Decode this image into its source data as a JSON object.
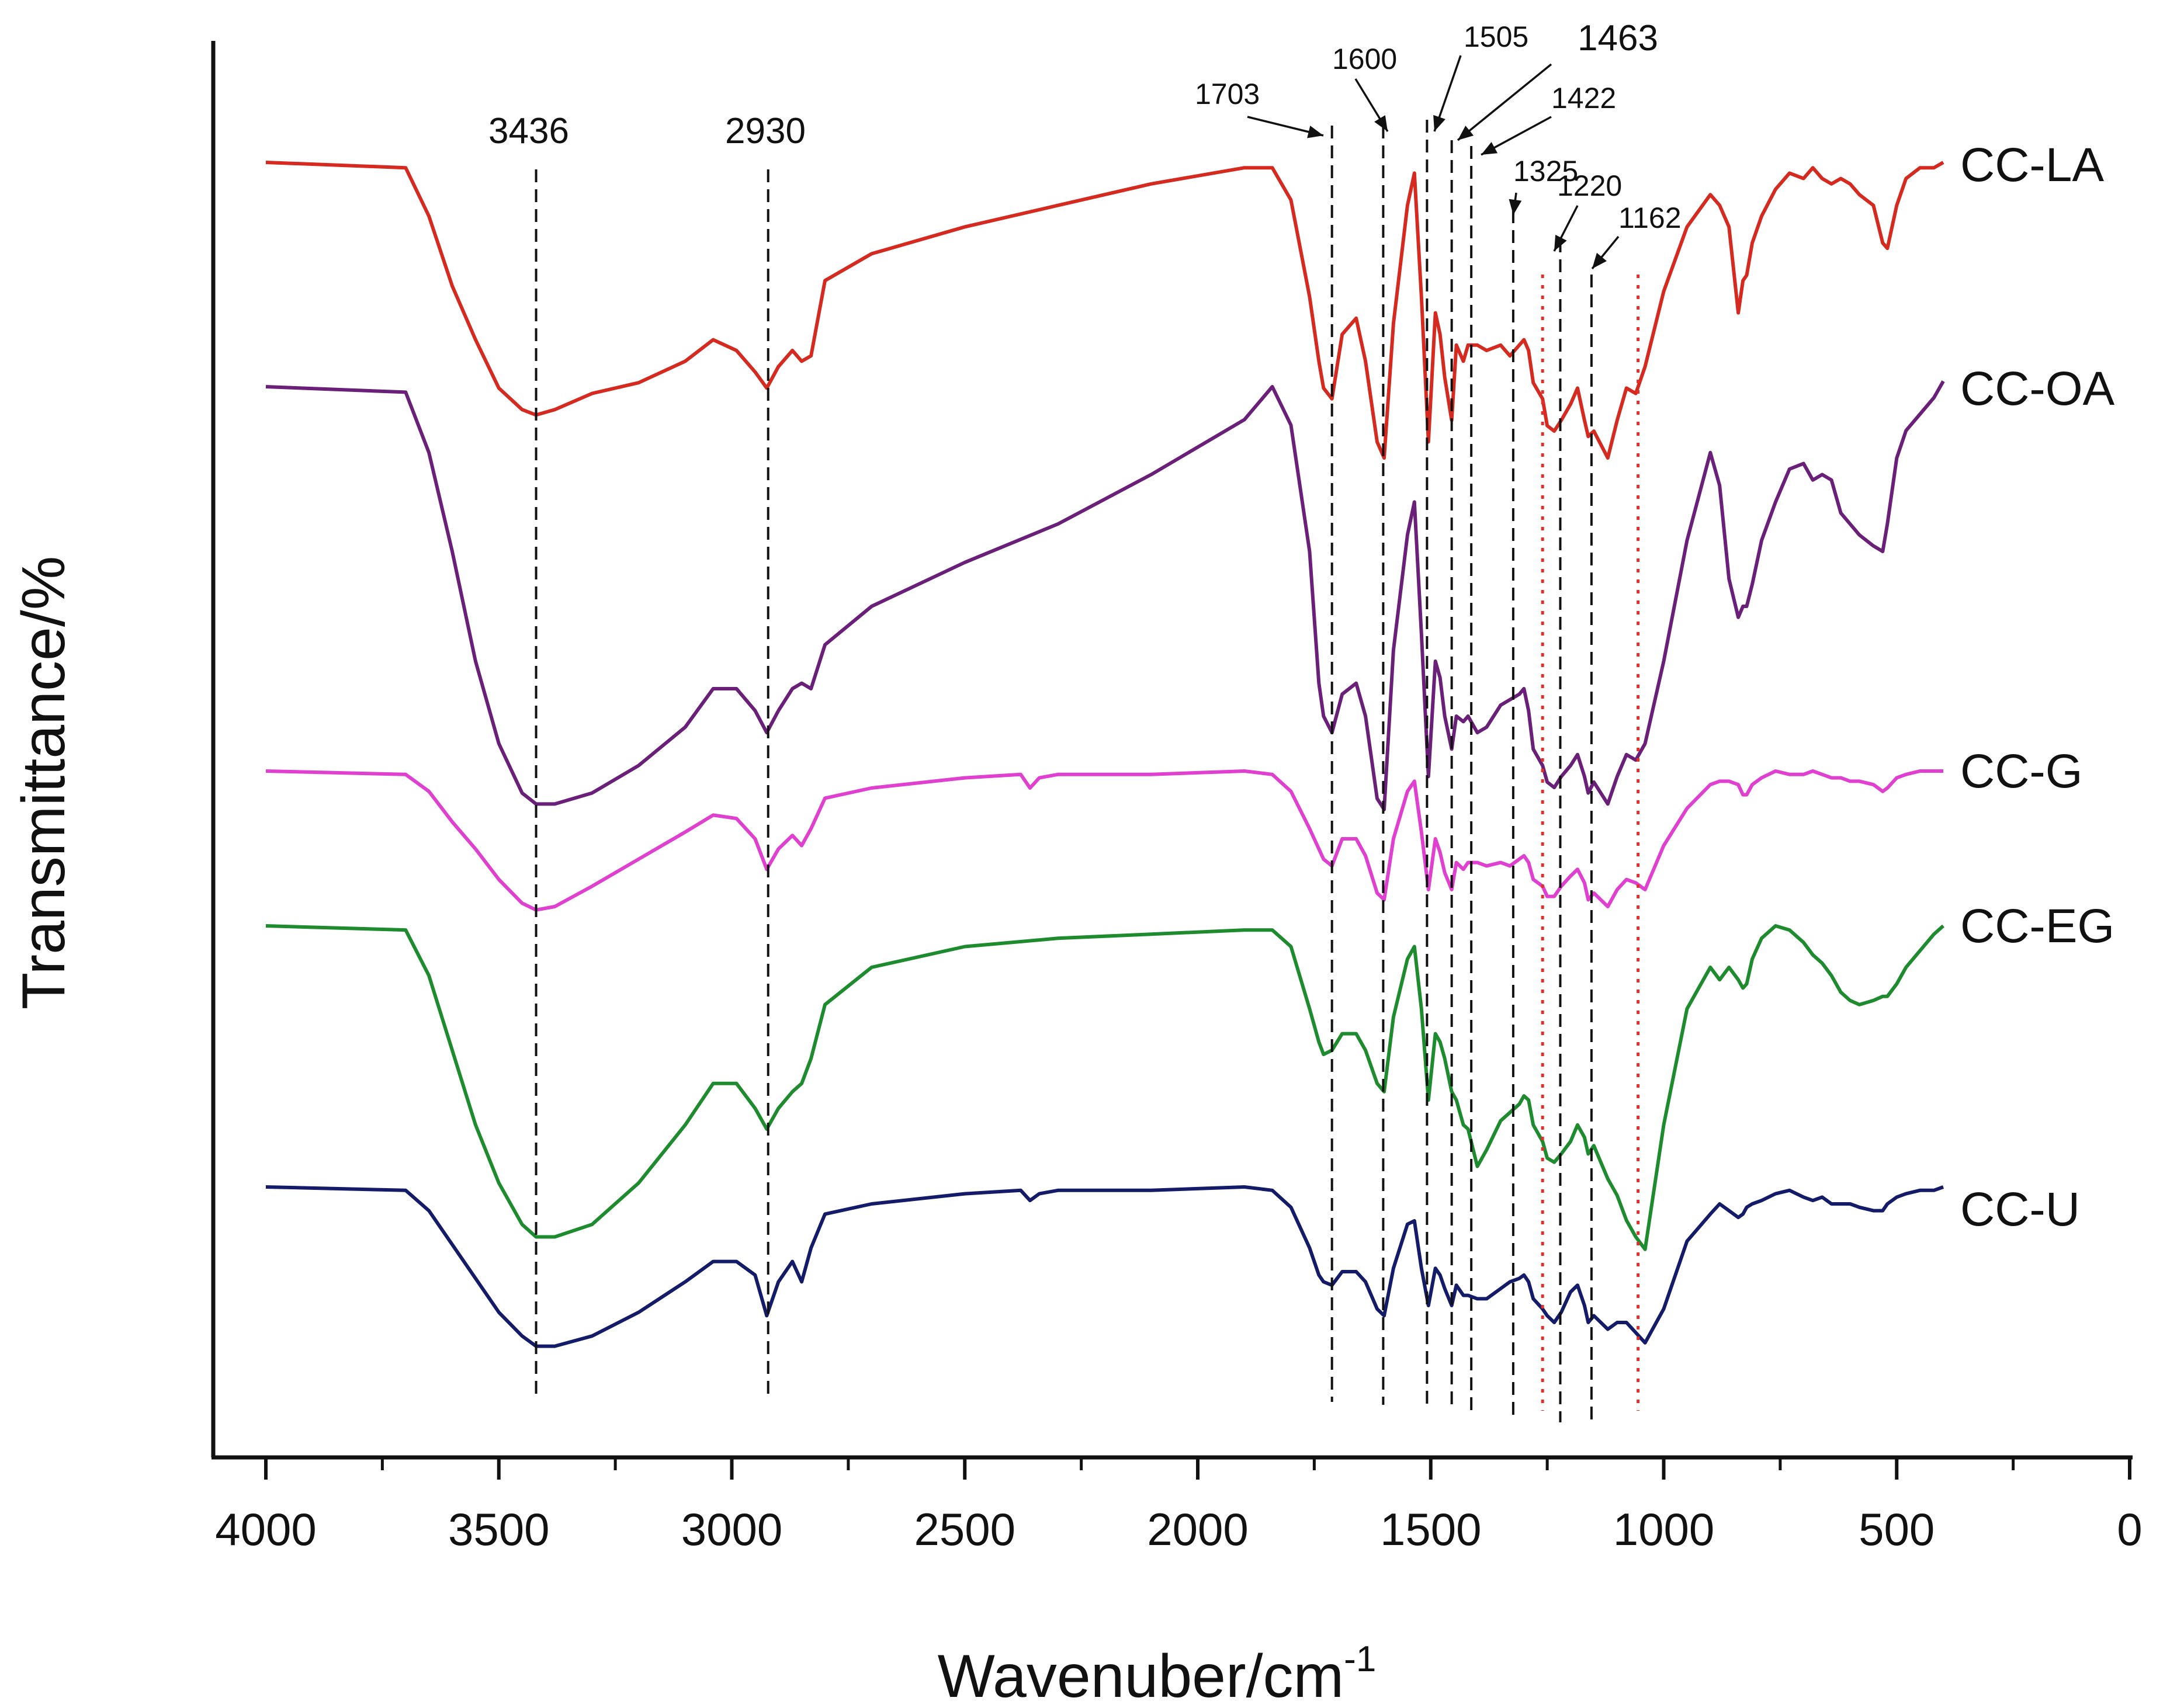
{
  "chart_data": {
    "type": "line",
    "title": "",
    "xlabel": "Wavenuber/cm",
    "xlabel_superscript": "-1",
    "ylabel": "Transmittance/%",
    "xlim": [
      4000,
      0
    ],
    "x_ticks": [
      4000,
      3500,
      3000,
      2500,
      2000,
      1500,
      1000,
      500,
      0
    ],
    "x_tick_labels": [
      "4000",
      "3500",
      "3000",
      "2500",
      "2000",
      "1500",
      "1000",
      "500",
      "0"
    ],
    "y_ticks_shown": false,
    "series": [
      {
        "name": "CC-LA",
        "color": "#d42a20",
        "baseline": 100,
        "x": [
          4000,
          3700,
          3650,
          3600,
          3550,
          3500,
          3450,
          3420,
          3380,
          3300,
          3200,
          3100,
          3040,
          2990,
          2950,
          2925,
          2900,
          2870,
          2850,
          2830,
          2800,
          2700,
          2500,
          2300,
          2100,
          1900,
          1840,
          1800,
          1760,
          1740,
          1730,
          1712,
          1690,
          1660,
          1640,
          1615,
          1600,
          1580,
          1550,
          1535,
          1520,
          1505,
          1490,
          1480,
          1470,
          1455,
          1445,
          1430,
          1420,
          1400,
          1380,
          1350,
          1330,
          1310,
          1300,
          1290,
          1280,
          1260,
          1250,
          1235,
          1220,
          1200,
          1185,
          1170,
          1162,
          1150,
          1120,
          1100,
          1080,
          1060,
          1040,
          1000,
          950,
          900,
          880,
          860,
          840,
          830,
          822,
          810,
          790,
          760,
          730,
          700,
          680,
          660,
          640,
          620,
          600,
          580,
          550,
          530,
          520,
          500,
          480,
          450,
          420,
          400
        ],
        "y": [
          100,
          99,
          90,
          77,
          67,
          58,
          54,
          53,
          54,
          57,
          59,
          63,
          67,
          65,
          61,
          58,
          62,
          65,
          63,
          64,
          78,
          83,
          88,
          92,
          96,
          99,
          99,
          93,
          75,
          63,
          58,
          56,
          68,
          71,
          63,
          48,
          45,
          70,
          92,
          98,
          75,
          48,
          72,
          68,
          60,
          52,
          66,
          63,
          66,
          66,
          65,
          66,
          64,
          66,
          67,
          65,
          59,
          56,
          51,
          50,
          52,
          55,
          58,
          52,
          49,
          50,
          45,
          52,
          58,
          57,
          62,
          76,
          88,
          94,
          92,
          88,
          72,
          78,
          79,
          85,
          90,
          95,
          98,
          97,
          99,
          97,
          96,
          97,
          96,
          94,
          92,
          85,
          84,
          92,
          97,
          99,
          99,
          100
        ]
      },
      {
        "name": "CC-OA",
        "color": "#6a1f78",
        "baseline": 100,
        "x": [
          4000,
          3700,
          3650,
          3600,
          3550,
          3500,
          3450,
          3420,
          3380,
          3300,
          3200,
          3100,
          3040,
          2990,
          2950,
          2925,
          2900,
          2870,
          2850,
          2830,
          2800,
          2700,
          2500,
          2300,
          2100,
          1900,
          1840,
          1800,
          1760,
          1740,
          1730,
          1712,
          1690,
          1660,
          1640,
          1615,
          1600,
          1580,
          1550,
          1535,
          1520,
          1505,
          1490,
          1480,
          1470,
          1455,
          1445,
          1430,
          1420,
          1400,
          1380,
          1350,
          1330,
          1310,
          1300,
          1290,
          1280,
          1260,
          1250,
          1235,
          1220,
          1200,
          1185,
          1170,
          1162,
          1150,
          1120,
          1100,
          1080,
          1060,
          1040,
          1000,
          950,
          900,
          880,
          860,
          840,
          830,
          822,
          810,
          790,
          760,
          730,
          700,
          680,
          660,
          640,
          620,
          600,
          580,
          550,
          530,
          520,
          500,
          480,
          450,
          420,
          400
        ],
        "y": [
          100,
          99,
          88,
          70,
          50,
          35,
          26,
          24,
          24,
          26,
          31,
          38,
          45,
          45,
          41,
          37,
          41,
          45,
          46,
          45,
          53,
          60,
          68,
          75,
          84,
          94,
          100,
          93,
          70,
          46,
          40,
          37,
          44,
          46,
          40,
          25,
          23,
          52,
          73,
          79,
          55,
          29,
          50,
          47,
          40,
          34,
          40,
          39,
          40,
          37,
          38,
          42,
          43,
          44,
          45,
          41,
          34,
          31,
          28,
          27,
          29,
          31,
          33,
          29,
          26,
          28,
          24,
          29,
          33,
          32,
          35,
          50,
          72,
          88,
          82,
          65,
          58,
          60,
          60,
          64,
          72,
          79,
          85,
          86,
          83,
          84,
          83,
          77,
          75,
          73,
          71,
          70,
          75,
          87,
          92,
          95,
          98,
          101
        ]
      },
      {
        "name": "CC-G",
        "color": "#e040d0",
        "baseline": 100,
        "x": [
          4000,
          3700,
          3650,
          3600,
          3550,
          3500,
          3450,
          3420,
          3380,
          3300,
          3200,
          3100,
          3040,
          2990,
          2950,
          2925,
          2900,
          2870,
          2850,
          2830,
          2800,
          2700,
          2500,
          2380,
          2360,
          2340,
          2300,
          2100,
          1900,
          1840,
          1800,
          1760,
          1740,
          1730,
          1712,
          1690,
          1660,
          1640,
          1615,
          1600,
          1580,
          1550,
          1535,
          1520,
          1505,
          1490,
          1480,
          1470,
          1455,
          1445,
          1430,
          1420,
          1400,
          1380,
          1350,
          1330,
          1310,
          1300,
          1290,
          1280,
          1260,
          1250,
          1235,
          1220,
          1200,
          1185,
          1170,
          1162,
          1150,
          1120,
          1100,
          1080,
          1060,
          1040,
          1000,
          950,
          900,
          880,
          860,
          840,
          830,
          822,
          810,
          790,
          760,
          730,
          700,
          680,
          660,
          640,
          620,
          600,
          580,
          550,
          530,
          520,
          500,
          480,
          450,
          420,
          400
        ],
        "y": [
          100,
          99,
          94,
          85,
          77,
          68,
          61,
          59,
          60,
          66,
          74,
          82,
          87,
          86,
          80,
          71,
          77,
          81,
          78,
          83,
          92,
          95,
          98,
          99,
          95,
          98,
          99,
          99,
          100,
          99,
          94,
          83,
          77,
          74,
          72,
          80,
          80,
          75,
          64,
          62,
          80,
          94,
          97,
          82,
          65,
          80,
          76,
          70,
          65,
          73,
          71,
          73,
          73,
          72,
          73,
          72,
          74,
          75,
          73,
          68,
          66,
          63,
          63,
          66,
          69,
          71,
          67,
          62,
          64,
          60,
          65,
          68,
          67,
          65,
          78,
          89,
          96,
          97,
          97,
          96,
          93,
          93,
          96,
          98,
          100,
          99,
          99,
          100,
          99,
          98,
          98,
          97,
          97,
          96,
          94,
          95,
          98,
          99,
          100,
          100,
          100
        ]
      },
      {
        "name": "CC-EG",
        "color": "#1e8c2e",
        "baseline": 100,
        "x": [
          4000,
          3700,
          3650,
          3600,
          3550,
          3500,
          3450,
          3420,
          3380,
          3300,
          3200,
          3100,
          3040,
          2990,
          2950,
          2925,
          2900,
          2870,
          2850,
          2830,
          2800,
          2700,
          2500,
          2300,
          2100,
          1900,
          1840,
          1800,
          1760,
          1740,
          1730,
          1712,
          1690,
          1660,
          1640,
          1615,
          1600,
          1580,
          1550,
          1535,
          1520,
          1505,
          1490,
          1480,
          1470,
          1455,
          1445,
          1430,
          1420,
          1400,
          1380,
          1350,
          1330,
          1310,
          1300,
          1290,
          1280,
          1260,
          1250,
          1235,
          1220,
          1200,
          1185,
          1170,
          1162,
          1150,
          1120,
          1100,
          1080,
          1060,
          1040,
          1000,
          950,
          900,
          880,
          860,
          840,
          830,
          822,
          810,
          790,
          760,
          730,
          700,
          680,
          660,
          640,
          620,
          600,
          580,
          550,
          530,
          520,
          500,
          480,
          450,
          420,
          400
        ],
        "y": [
          100,
          99,
          88,
          70,
          52,
          38,
          28,
          25,
          25,
          28,
          38,
          52,
          62,
          62,
          56,
          51,
          56,
          60,
          62,
          68,
          81,
          90,
          95,
          97,
          98,
          99,
          99,
          95,
          80,
          72,
          69,
          70,
          74,
          74,
          70,
          62,
          60,
          78,
          92,
          95,
          80,
          58,
          74,
          72,
          68,
          60,
          58,
          52,
          51,
          42,
          46,
          53,
          55,
          57,
          59,
          58,
          52,
          48,
          44,
          43,
          45,
          48,
          52,
          49,
          45,
          47,
          39,
          35,
          29,
          25,
          22,
          52,
          80,
          90,
          87,
          90,
          87,
          85,
          86,
          92,
          97,
          100,
          99,
          96,
          93,
          91,
          88,
          84,
          82,
          81,
          82,
          83,
          83,
          86,
          90,
          94,
          98,
          100
        ]
      },
      {
        "name": "CC-U",
        "color": "#141c6a",
        "baseline": 100,
        "x": [
          4000,
          3700,
          3650,
          3600,
          3550,
          3500,
          3450,
          3420,
          3380,
          3300,
          3200,
          3100,
          3040,
          2990,
          2950,
          2925,
          2900,
          2870,
          2850,
          2830,
          2800,
          2700,
          2500,
          2380,
          2360,
          2340,
          2300,
          2100,
          1900,
          1840,
          1800,
          1760,
          1740,
          1730,
          1712,
          1690,
          1660,
          1640,
          1615,
          1600,
          1580,
          1550,
          1535,
          1520,
          1505,
          1490,
          1480,
          1470,
          1455,
          1445,
          1430,
          1420,
          1400,
          1380,
          1350,
          1330,
          1310,
          1300,
          1290,
          1280,
          1260,
          1250,
          1235,
          1220,
          1200,
          1185,
          1170,
          1162,
          1150,
          1120,
          1100,
          1080,
          1060,
          1040,
          1000,
          950,
          900,
          880,
          860,
          840,
          830,
          822,
          810,
          790,
          760,
          730,
          700,
          680,
          660,
          640,
          620,
          600,
          580,
          550,
          530,
          520,
          500,
          480,
          450,
          420,
          400
        ],
        "y": [
          100,
          99,
          93,
          83,
          73,
          63,
          56,
          53,
          53,
          56,
          63,
          72,
          78,
          78,
          74,
          62,
          72,
          78,
          72,
          82,
          92,
          95,
          98,
          99,
          96,
          98,
          99,
          99,
          100,
          99,
          94,
          82,
          74,
          72,
          71,
          75,
          75,
          72,
          64,
          62,
          76,
          89,
          90,
          76,
          65,
          76,
          74,
          70,
          65,
          71,
          68,
          68,
          67,
          67,
          70,
          72,
          73,
          74,
          72,
          67,
          64,
          62,
          60,
          63,
          69,
          71,
          65,
          60,
          62,
          58,
          60,
          60,
          57,
          54,
          64,
          84,
          92,
          95,
          93,
          91,
          92,
          94,
          95,
          96,
          98,
          99,
          97,
          96,
          97,
          95,
          95,
          95,
          94,
          93,
          93,
          95,
          97,
          98,
          99,
          99,
          100
        ]
      }
    ],
    "markers_dashed": [
      {
        "label": "3436",
        "x": 3420
      },
      {
        "label": "2930",
        "x": 2922
      },
      {
        "label": "1703",
        "x": 1712
      },
      {
        "label": "1600",
        "x": 1602
      },
      {
        "label": "1505",
        "x": 1508
      },
      {
        "label": "1463",
        "x": 1455
      },
      {
        "label": "1422",
        "x": 1413
      },
      {
        "label": "1325",
        "x": 1323
      },
      {
        "label": "1220",
        "x": 1222
      },
      {
        "label": "1162",
        "x": 1155
      }
    ],
    "markers_dotted_red": [
      {
        "x": 1260
      },
      {
        "x": 1055
      }
    ]
  }
}
